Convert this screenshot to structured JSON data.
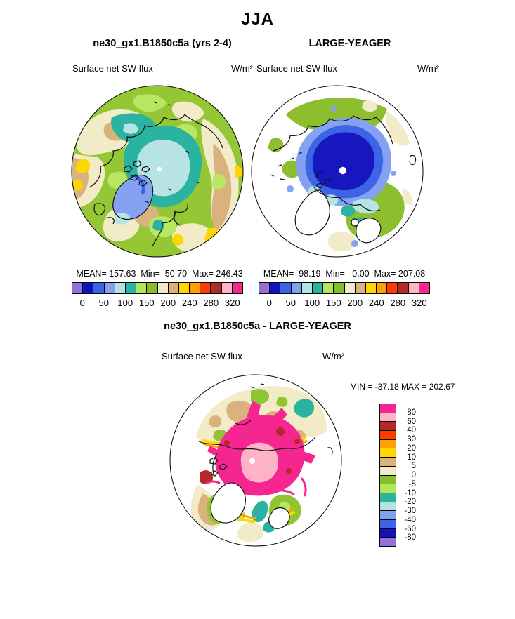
{
  "page": {
    "title": "JJA"
  },
  "panels": {
    "model": {
      "title": "ne30_gx1.B1850c5a (yrs 2-4)",
      "field_label": "Surface net SW flux",
      "units": "W/m²",
      "stats": "MEAN= 157.63  Min=  50.70  Max= 246.43"
    },
    "obs": {
      "title": "LARGE-YEAGER",
      "field_label": "Surface net SW flux",
      "units": "W/m²",
      "stats": "MEAN=  98.19  Min=   0.00  Max= 207.08"
    },
    "diff": {
      "title": "ne30_gx1.B1850c5a - LARGE-YEAGER",
      "field_label": "Surface net SW flux",
      "units": "W/m²",
      "minmax": "MIN = -37.18 MAX = 202.67"
    }
  },
  "flux_colorbar": {
    "colors": [
      "#9470DB",
      "#1111BE",
      "#3C64E6",
      "#82A0F0",
      "#B4E1E1",
      "#28B4A0",
      "#B4E65A",
      "#85BE28",
      "#F1EBC8",
      "#D9B27D",
      "#FFD700",
      "#FFA000",
      "#FF3C00",
      "#B42828",
      "#FFB3C6",
      "#F5268F"
    ],
    "ticks": [
      "0",
      "50",
      "100",
      "150",
      "200",
      "240",
      "280",
      "320"
    ]
  },
  "diff_colorbar": {
    "colors": [
      "#F5268F",
      "#FFB3C6",
      "#B42828",
      "#FF3C00",
      "#FFA000",
      "#FFD700",
      "#D9B27D",
      "#F1EBC8",
      "#85BE28",
      "#B4E65A",
      "#28B4A0",
      "#B4E1E1",
      "#82A0F0",
      "#3C64E6",
      "#1111BE",
      "#9470DB"
    ],
    "labels": [
      "80",
      "60",
      "40",
      "30",
      "20",
      "10",
      "5",
      "0",
      "-5",
      "-10",
      "-20",
      "-30",
      "-40",
      "-60",
      "-80"
    ]
  },
  "chart_data": {
    "type": "heatmap",
    "figure": "North polar stereographic filled-contour maps",
    "season": "JJA",
    "variable": "Surface net SW flux",
    "units": "W/m²",
    "panels": [
      {
        "name": "model",
        "title": "ne30_gx1.B1850c5a (yrs 2-4)",
        "mean": 157.63,
        "min": 50.7,
        "max": 246.43,
        "levels": [
          0,
          25,
          50,
          75,
          100,
          125,
          150,
          175,
          200,
          220,
          240,
          260,
          280,
          300,
          320
        ],
        "labeled_ticks": [
          0,
          50,
          100,
          150,
          200,
          240,
          280,
          320
        ]
      },
      {
        "name": "obs",
        "title": "LARGE-YEAGER",
        "mean": 98.19,
        "min": 0.0,
        "max": 207.08,
        "levels": [
          0,
          25,
          50,
          75,
          100,
          125,
          150,
          175,
          200,
          220,
          240,
          260,
          280,
          300,
          320
        ],
        "labeled_ticks": [
          0,
          50,
          100,
          150,
          200,
          240,
          280,
          320
        ]
      },
      {
        "name": "difference",
        "title": "ne30_gx1.B1850c5a - LARGE-YEAGER",
        "min": -37.18,
        "max": 202.67,
        "levels": [
          -80,
          -60,
          -40,
          -30,
          -20,
          -10,
          -5,
          0,
          5,
          10,
          20,
          30,
          40,
          60,
          80
        ]
      }
    ],
    "palette_low_to_high": [
      "#9470DB",
      "#1111BE",
      "#3C64E6",
      "#82A0F0",
      "#B4E1E1",
      "#28B4A0",
      "#B4E65A",
      "#85BE28",
      "#F1EBC8",
      "#D9B27D",
      "#FFD700",
      "#FFA000",
      "#FF3C00",
      "#B42828",
      "#FFB3C6",
      "#F5268F"
    ],
    "legend_position": "horizontal below top panels; vertical right of difference panel"
  }
}
